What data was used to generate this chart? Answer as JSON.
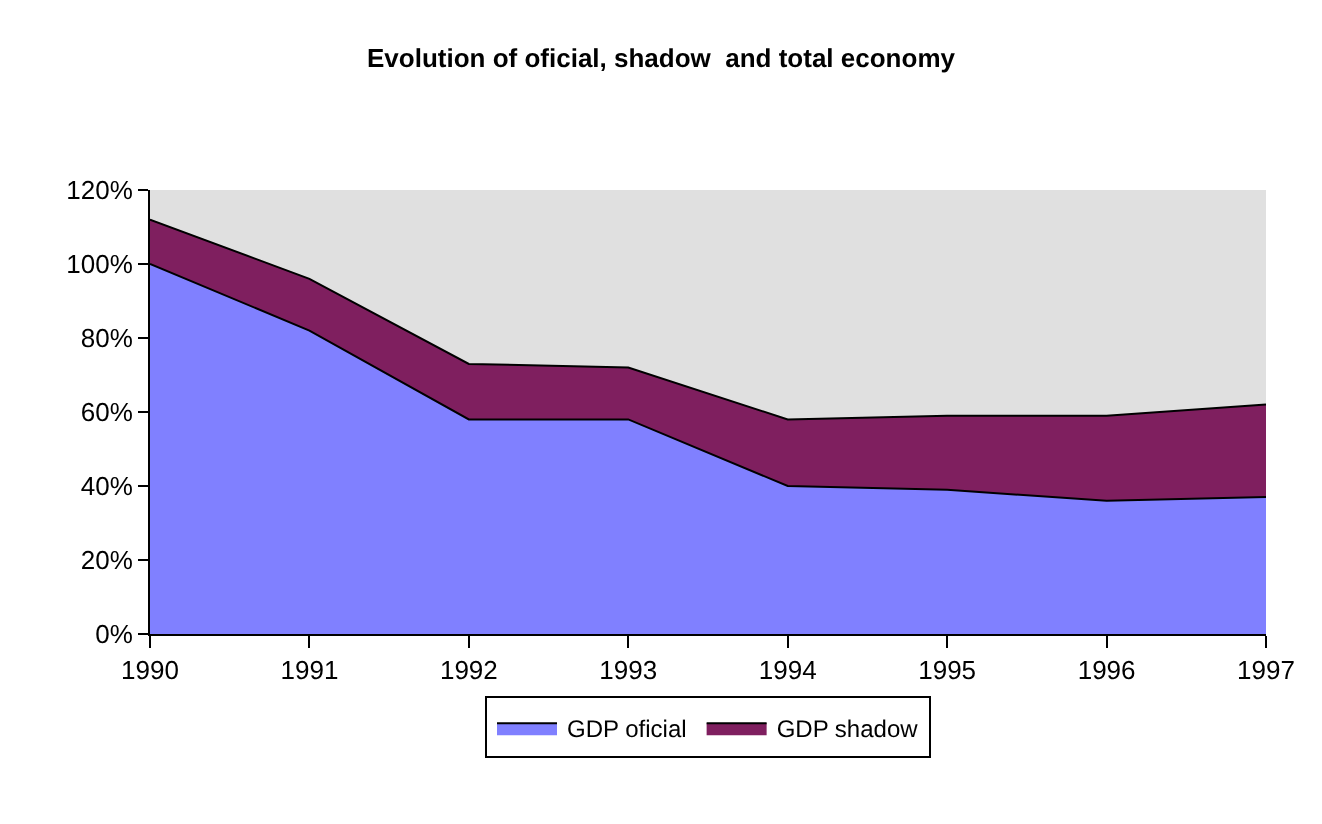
{
  "chart_data": {
    "type": "area",
    "stacked": true,
    "title": "Evolution of oficial, shadow  and total economy",
    "x": [
      1990,
      1991,
      1992,
      1993,
      1994,
      1995,
      1996,
      1997
    ],
    "series": [
      {
        "name": "GDP oficial",
        "color": "#8080ff",
        "values": [
          100,
          82,
          58,
          58,
          40,
          39,
          36,
          37
        ]
      },
      {
        "name": "GDP shadow",
        "color": "#7f1f5f",
        "values": [
          12,
          14,
          15,
          14,
          18,
          20,
          23,
          25
        ]
      }
    ],
    "xlim": [
      1990,
      1997
    ],
    "xticks": [
      1990,
      1991,
      1992,
      1993,
      1994,
      1995,
      1996,
      1997
    ],
    "ylim": [
      0,
      120
    ],
    "yticks": [
      {
        "value": 0,
        "label": "0%"
      },
      {
        "value": 20,
        "label": "20%"
      },
      {
        "value": 40,
        "label": "40%"
      },
      {
        "value": 60,
        "label": "60%"
      },
      {
        "value": 80,
        "label": "80%"
      },
      {
        "value": 100,
        "label": "100%"
      },
      {
        "value": 120,
        "label": "120%"
      }
    ],
    "grid": false,
    "legend": "bottom"
  }
}
